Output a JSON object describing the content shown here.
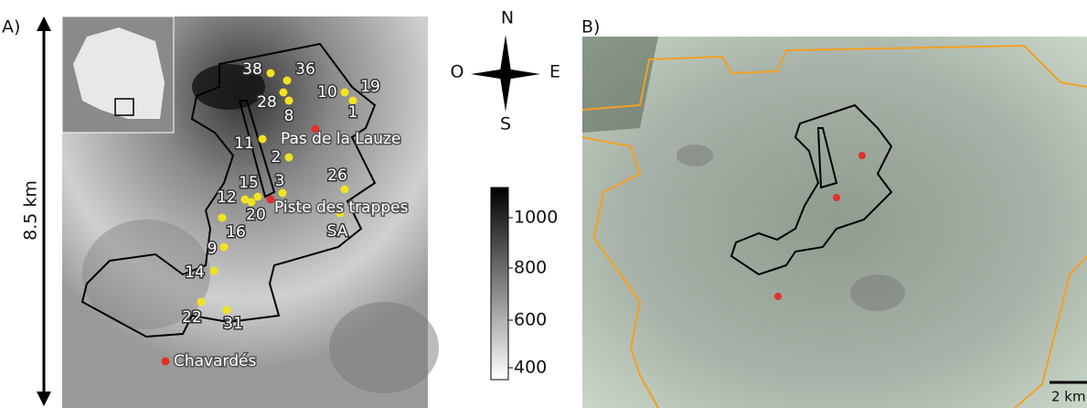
{
  "panel_a": {
    "label": "A)",
    "scale": "8.5 km",
    "compass": {
      "north": "N",
      "south": "S",
      "west": "O",
      "east": "E"
    },
    "colorbar_ticks": [
      "1000",
      "800",
      "600",
      "400"
    ],
    "sites": [
      "38",
      "36",
      "28",
      "8",
      "10",
      "19",
      "1",
      "11",
      "2",
      "3",
      "15",
      "12",
      "20",
      "26",
      "16",
      "SA",
      "9",
      "14",
      "22",
      "31"
    ],
    "places": [
      "Pas de la Lauze",
      "Piste des trappes",
      "Chavardés"
    ]
  },
  "panel_b": {
    "label": "B)",
    "scale": "2 km"
  }
}
